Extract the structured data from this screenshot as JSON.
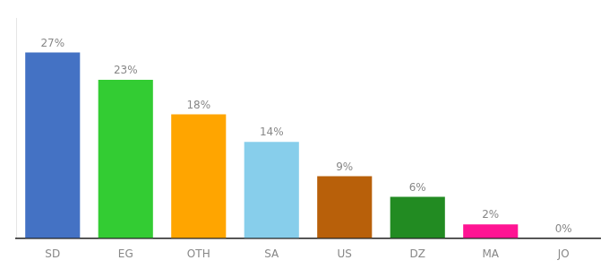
{
  "chart_data": {
    "type": "bar",
    "categories": [
      "SD",
      "EG",
      "OTH",
      "SA",
      "US",
      "DZ",
      "MA",
      "JO"
    ],
    "values": [
      27,
      23,
      18,
      14,
      9,
      6,
      2,
      0
    ],
    "value_labels": [
      "27%",
      "23%",
      "18%",
      "14%",
      "9%",
      "6%",
      "2%",
      "0%"
    ],
    "colors": [
      "#4472C4",
      "#33CC33",
      "#FFA500",
      "#87CEEB",
      "#B8600A",
      "#228B22",
      "#FF1493",
      "#87CEEB"
    ],
    "ylim": [
      0,
      32
    ],
    "grid": false,
    "data_labels": true,
    "tick_labels": "x"
  }
}
